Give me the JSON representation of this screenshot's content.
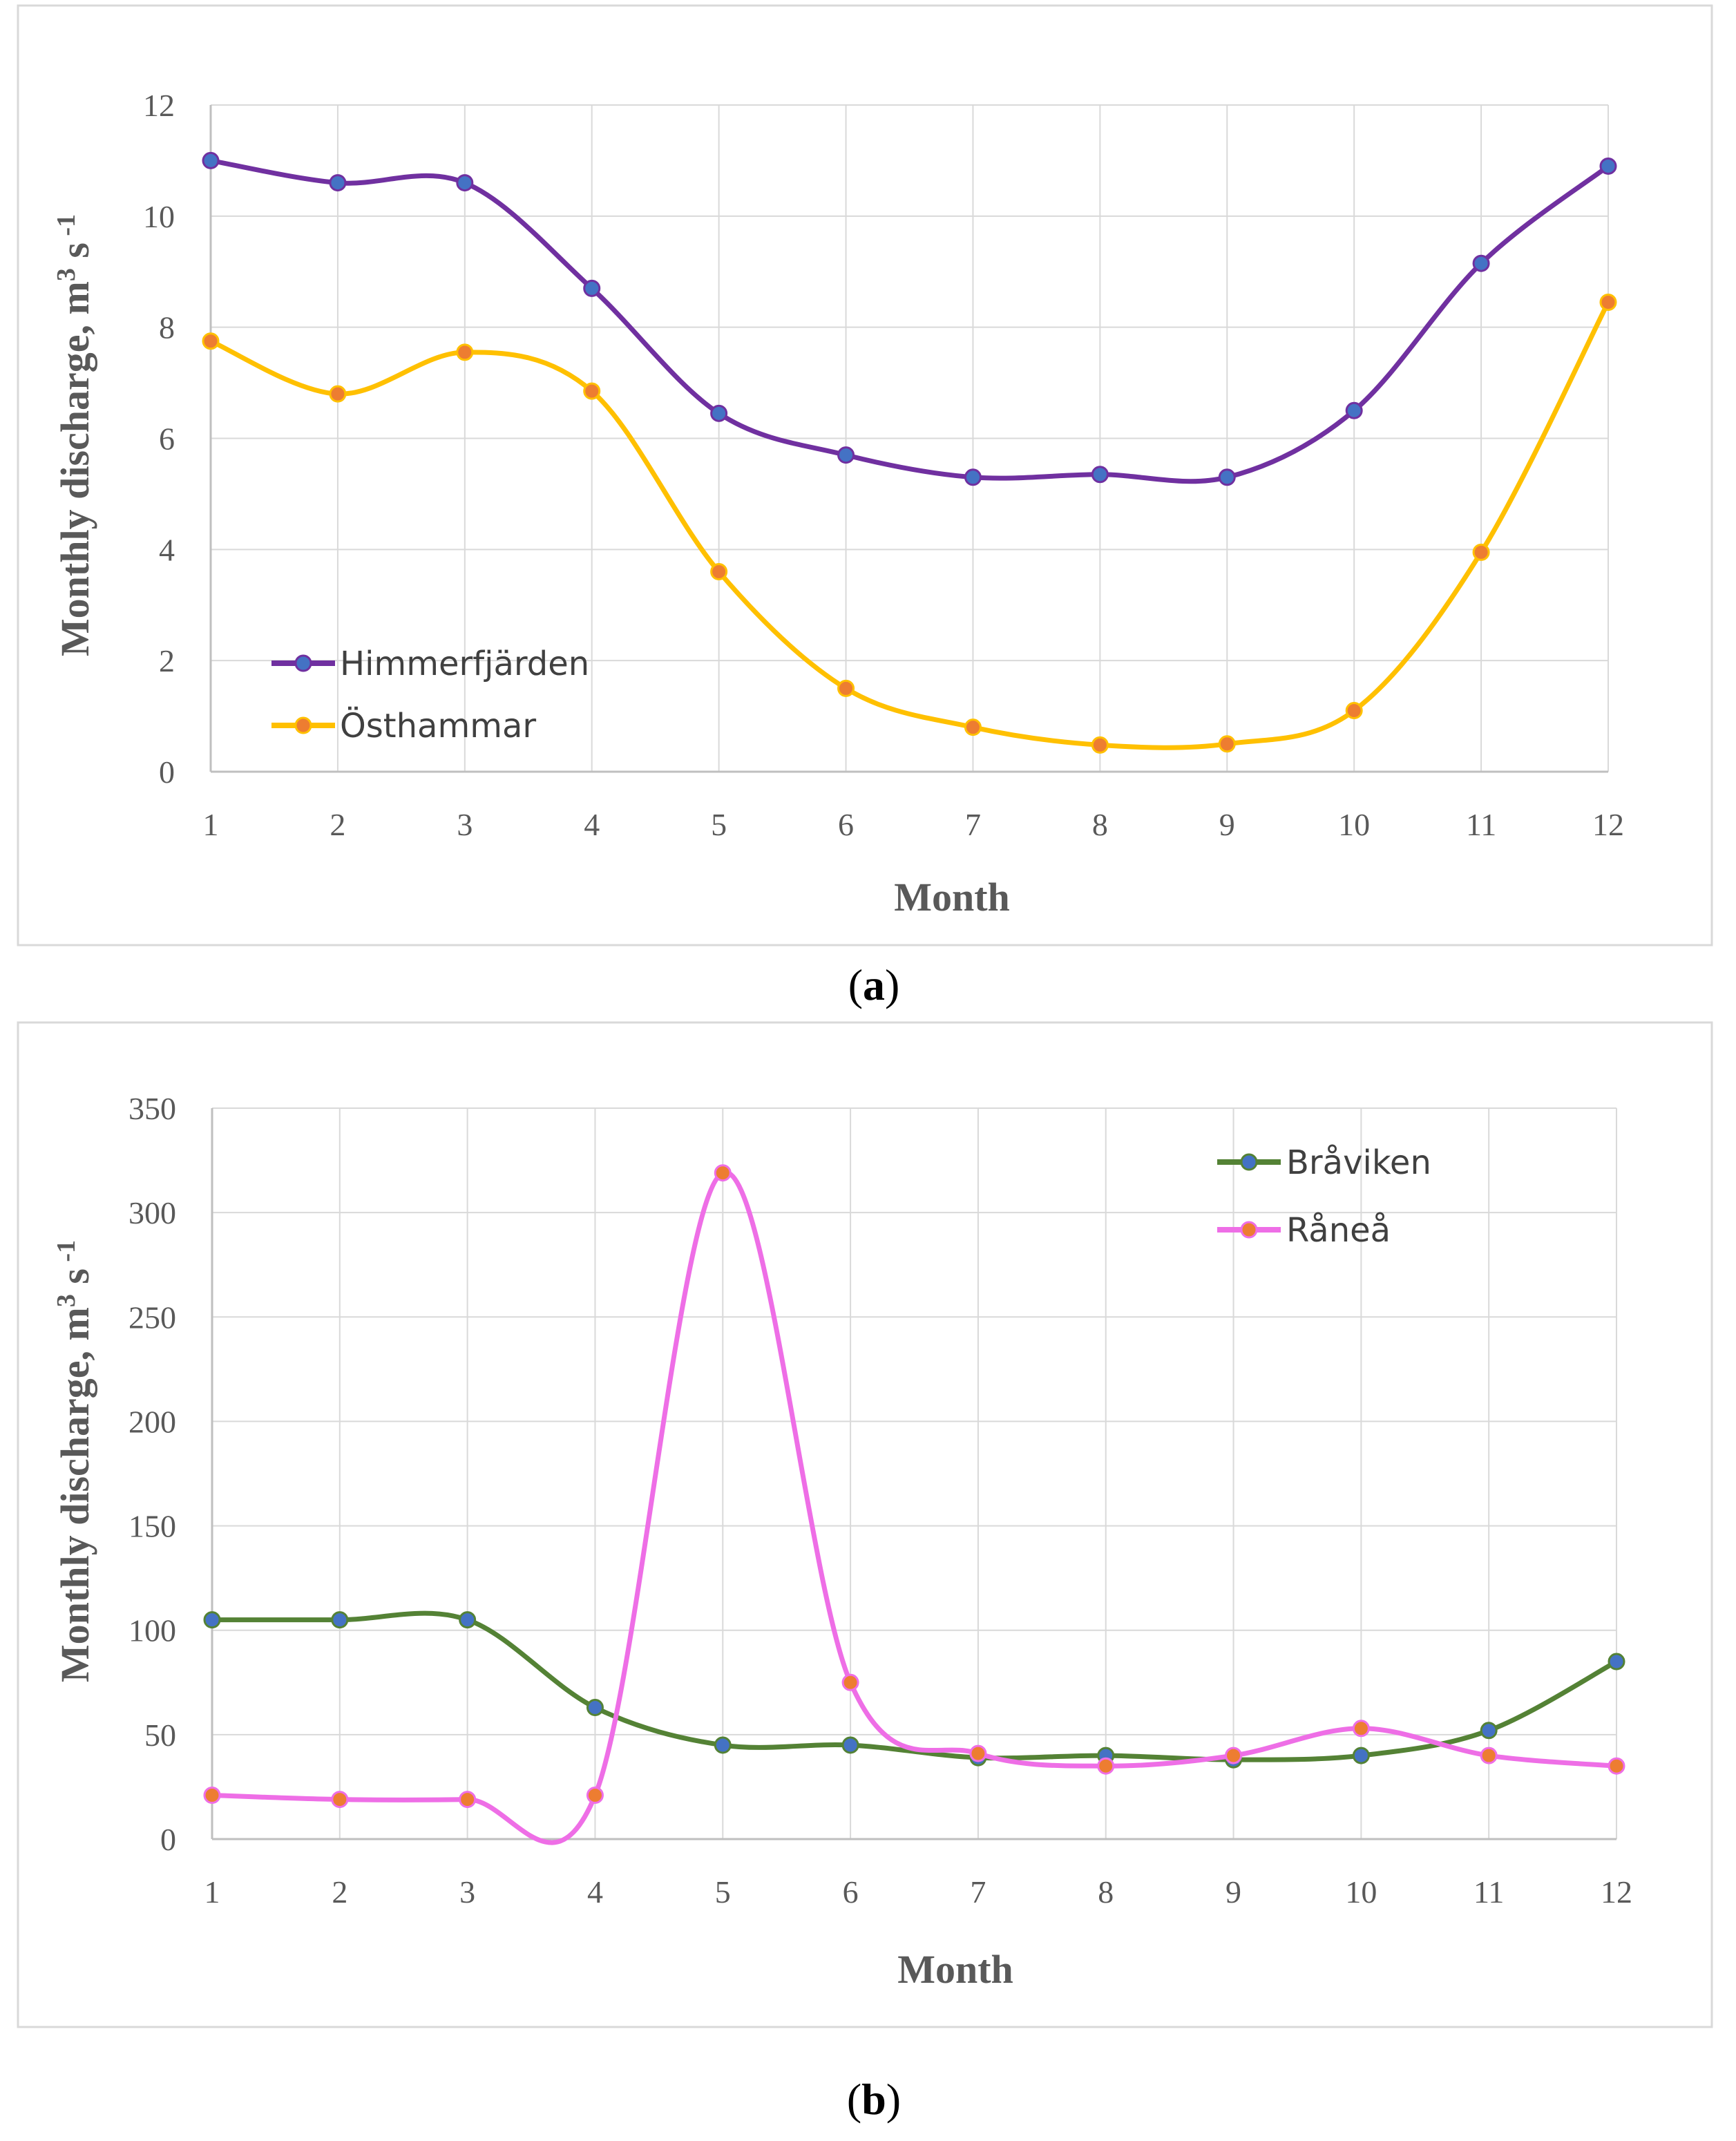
{
  "chart_data": [
    {
      "type": "line",
      "caption_open": "(",
      "caption_letter": "a",
      "caption_close": ")",
      "xlabel": "Month",
      "ylabel_main": "Monthly discharge, m",
      "ylabel_sup": "3",
      "ylabel_tail": " s",
      "ylabel_exp": " -1",
      "x": [
        1,
        2,
        3,
        4,
        5,
        6,
        7,
        8,
        9,
        10,
        11,
        12
      ],
      "x_tick_labels": [
        "1",
        "2",
        "3",
        "4",
        "5",
        "6",
        "7",
        "8",
        "9",
        "10",
        "11",
        "12"
      ],
      "ylim": [
        0,
        12
      ],
      "y_ticks": [
        0,
        2,
        4,
        6,
        8,
        10,
        12
      ],
      "y_tick_labels": [
        "0",
        "2",
        "4",
        "6",
        "8",
        "10",
        "12"
      ],
      "grid": true,
      "legend_position": "bottom-left",
      "series": [
        {
          "name": "Himmerfjärden",
          "color": "#7030a0",
          "marker_color": "#4472c4",
          "values": [
            11.0,
            10.6,
            10.6,
            8.7,
            6.45,
            5.7,
            5.3,
            5.35,
            5.3,
            6.5,
            9.15,
            10.9
          ]
        },
        {
          "name": "Östhammar",
          "color": "#ffc000",
          "marker_color": "#ed7d31",
          "values": [
            7.75,
            6.8,
            7.55,
            6.85,
            3.6,
            1.5,
            0.8,
            0.48,
            0.5,
            1.1,
            3.95,
            8.45
          ]
        }
      ]
    },
    {
      "type": "line",
      "caption_open": "(",
      "caption_letter": "b",
      "caption_close": ")",
      "xlabel": "Month",
      "ylabel_main": "Monthly discharge, m",
      "ylabel_sup": "3",
      "ylabel_tail": " s",
      "ylabel_exp": " -1",
      "x": [
        1,
        2,
        3,
        4,
        5,
        6,
        7,
        8,
        9,
        10,
        11,
        12
      ],
      "x_tick_labels": [
        "1",
        "2",
        "3",
        "4",
        "5",
        "6",
        "7",
        "8",
        "9",
        "10",
        "11",
        "12"
      ],
      "ylim": [
        0,
        350
      ],
      "y_ticks": [
        0,
        50,
        100,
        150,
        200,
        250,
        300,
        350
      ],
      "y_tick_labels": [
        "0",
        "50",
        "100",
        "150",
        "200",
        "250",
        "300",
        "350"
      ],
      "grid": true,
      "legend_position": "top-right",
      "series": [
        {
          "name": "Bråviken",
          "color": "#548235",
          "marker_color": "#4472c4",
          "values": [
            105,
            105,
            105,
            63,
            45,
            45,
            39,
            40,
            38,
            40,
            52,
            85
          ]
        },
        {
          "name": "Råneå",
          "color": "#ee6ee6",
          "marker_color": "#ed7d31",
          "values": [
            21,
            19,
            19,
            21,
            319,
            75,
            41,
            35,
            40,
            53,
            40,
            35
          ]
        }
      ]
    }
  ]
}
